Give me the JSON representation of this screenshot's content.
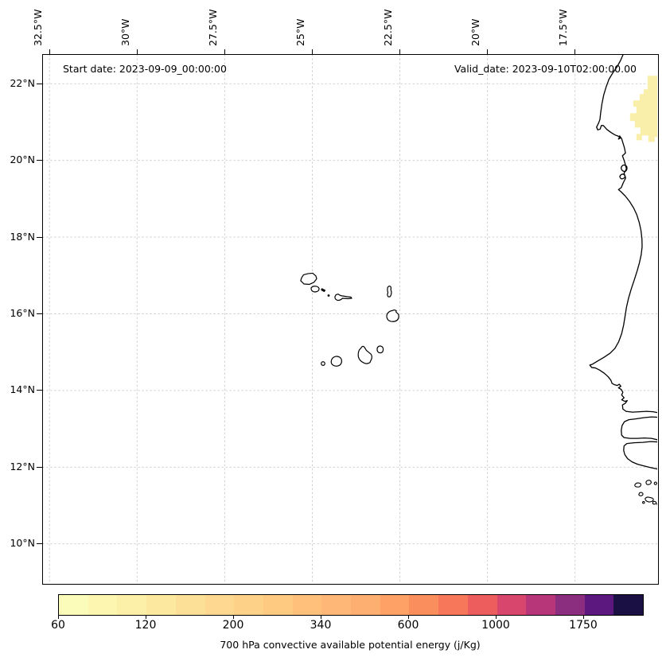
{
  "annotations": {
    "start_date": "Start date: 2023-09-09_00:00:00",
    "valid_date": "Valid_date: 2023-09-10T02:00:00.00"
  },
  "axes": {
    "top_tick_labels": [
      "32.5°W",
      "30°W",
      "27.5°W",
      "25°W",
      "22.5°W",
      "20°W",
      "17.5°W"
    ],
    "left_tick_labels": [
      "22°N",
      "20°N",
      "18°N",
      "16°N",
      "14°N",
      "12°N",
      "10°N"
    ]
  },
  "colorbar": {
    "label": "700 hPa convective available potential energy (j/Kg)",
    "tick_labels": [
      "60",
      "120",
      "200",
      "340",
      "600",
      "1000",
      "1750"
    ],
    "segment_colors": [
      "#fbfcba",
      "#fcf6b0",
      "#fcefa8",
      "#fde8a0",
      "#fde098",
      "#fed890",
      "#fed189",
      "#fec981",
      "#fec07b",
      "#feb776",
      "#fdae71",
      "#fda166",
      "#fb8e5d",
      "#f7775b",
      "#ee5d5e",
      "#d8456d",
      "#b73679",
      "#8c2e80",
      "#5c187f",
      "#1b1044"
    ],
    "shaded_region_color": "#f9efab"
  },
  "map": {
    "coastline_color": "#000000",
    "grid_color": "#cbcbcb",
    "land_fill": "#ffffff"
  }
}
